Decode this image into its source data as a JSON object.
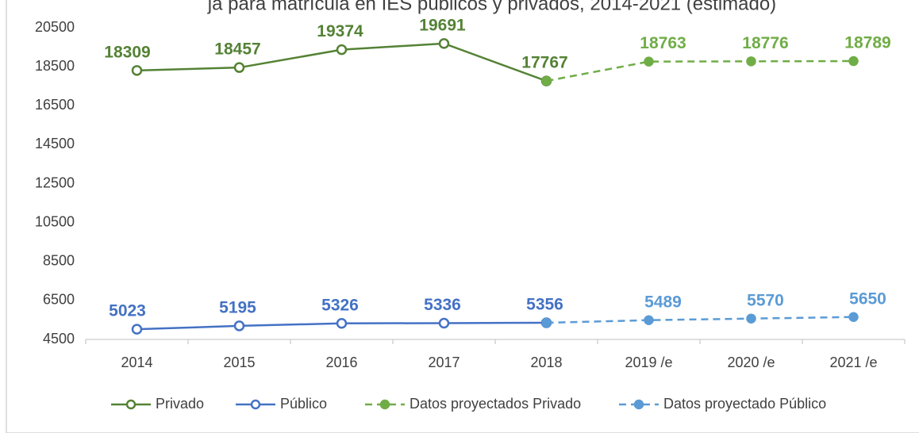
{
  "chart_data": {
    "type": "line",
    "title": "ja para matrícula en IES públicos y privados, 2014-2021 (estimado)",
    "categories": [
      "2014",
      "2015",
      "2016",
      "2017",
      "2018",
      "2019 /e",
      "2020 /e",
      "2021 /e"
    ],
    "series": [
      {
        "name": "Privado",
        "color": "#548235",
        "dash": false,
        "values": [
          18309,
          18457,
          19374,
          19691,
          17767,
          null,
          null,
          null
        ]
      },
      {
        "name": "Público",
        "color": "#4472c4",
        "dash": false,
        "values": [
          5023,
          5195,
          5326,
          5336,
          5356,
          null,
          null,
          null
        ]
      },
      {
        "name": "Datos proyectados Privado",
        "color": "#70ad47",
        "dash": true,
        "values": [
          null,
          null,
          null,
          null,
          17767,
          18763,
          18776,
          18789
        ]
      },
      {
        "name": "Datos proyectado Público",
        "color": "#5b9bd5",
        "dash": true,
        "values": [
          null,
          null,
          null,
          null,
          5356,
          5489,
          5570,
          5650
        ]
      }
    ],
    "ylim": [
      4500,
      20500
    ],
    "yticks": [
      4500,
      6500,
      8500,
      10500,
      12500,
      14500,
      16500,
      18500,
      20500
    ],
    "grid": false,
    "legend": "bottom"
  }
}
